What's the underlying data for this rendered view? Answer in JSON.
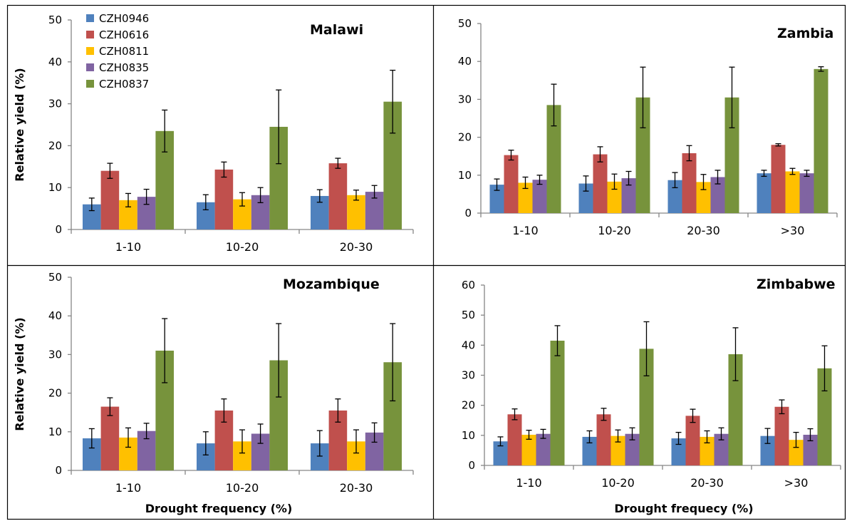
{
  "colors": {
    "CZH0946": "#4F81BD",
    "CZH0616": "#C0504D",
    "CZH0811": "#FFC000",
    "CZH0835": "#8064A2",
    "CZH0837": "#77933C"
  },
  "legend": {
    "position": "top-left",
    "entries": [
      "CZH0946",
      "CZH0616",
      "CZH0811",
      "CZH0835",
      "CZH0837"
    ]
  },
  "chart_data": [
    {
      "type": "bar",
      "title": "Malawi",
      "ylabel": "Relative yield  (%)",
      "xlabel": "",
      "categories": [
        "1-10",
        "10-20",
        "20-30"
      ],
      "ylim": [
        0,
        50
      ],
      "yticks": [
        "0",
        "10",
        "20",
        "30",
        "40",
        "50"
      ],
      "series": [
        {
          "name": "CZH0946",
          "values": [
            6,
            6.5,
            8
          ],
          "errors": [
            1.5,
            1.8,
            1.5
          ]
        },
        {
          "name": "CZH0616",
          "values": [
            14,
            14.3,
            15.8
          ],
          "errors": [
            1.8,
            1.8,
            1.2
          ]
        },
        {
          "name": "CZH0811",
          "values": [
            7,
            7.2,
            8.2
          ],
          "errors": [
            1.6,
            1.6,
            1.2
          ]
        },
        {
          "name": "CZH0835",
          "values": [
            7.8,
            8.2,
            9
          ],
          "errors": [
            1.8,
            1.8,
            1.5
          ]
        },
        {
          "name": "CZH0837",
          "values": [
            23.5,
            24.5,
            30.5
          ],
          "errors": [
            5,
            8.8,
            7.5
          ]
        }
      ]
    },
    {
      "type": "bar",
      "title": "Zambia",
      "ylabel": "",
      "xlabel": "",
      "categories": [
        "1-10",
        "10-20",
        "20-30",
        ">30"
      ],
      "ylim": [
        0,
        50
      ],
      "yticks": [
        "0",
        "10",
        "20",
        "30",
        "40",
        "50"
      ],
      "series": [
        {
          "name": "CZH0946",
          "values": [
            7.5,
            7.8,
            8.7,
            10.5
          ],
          "errors": [
            1.5,
            2,
            2,
            0.8
          ]
        },
        {
          "name": "CZH0616",
          "values": [
            15.3,
            15.5,
            15.8,
            18
          ],
          "errors": [
            1.3,
            2,
            2,
            0.3
          ]
        },
        {
          "name": "CZH0811",
          "values": [
            8,
            8.3,
            8.2,
            11
          ],
          "errors": [
            1.5,
            2,
            2,
            0.8
          ]
        },
        {
          "name": "CZH0835",
          "values": [
            8.8,
            9.2,
            9.5,
            10.5
          ],
          "errors": [
            1.2,
            1.8,
            1.8,
            0.8
          ]
        },
        {
          "name": "CZH0837",
          "values": [
            28.5,
            30.5,
            30.5,
            38
          ],
          "errors": [
            5.5,
            8,
            8,
            0.6
          ]
        }
      ]
    },
    {
      "type": "bar",
      "title": "Mozambique",
      "ylabel": "Relative yield  (%)",
      "xlabel": "Drought frequency (%)",
      "categories": [
        "1-10",
        "10-20",
        "20-30"
      ],
      "ylim": [
        0,
        50
      ],
      "yticks": [
        "0",
        "10",
        "20",
        "30",
        "40",
        "50"
      ],
      "series": [
        {
          "name": "CZH0946",
          "values": [
            8.3,
            7,
            7
          ],
          "errors": [
            2.5,
            3,
            3.3
          ]
        },
        {
          "name": "CZH0616",
          "values": [
            16.5,
            15.5,
            15.5
          ],
          "errors": [
            2.3,
            3,
            3
          ]
        },
        {
          "name": "CZH0811",
          "values": [
            8.5,
            7.5,
            7.5
          ],
          "errors": [
            2.5,
            3,
            3
          ]
        },
        {
          "name": "CZH0835",
          "values": [
            10.2,
            9.5,
            9.8
          ],
          "errors": [
            2,
            2.5,
            2.5
          ]
        },
        {
          "name": "CZH0837",
          "values": [
            31,
            28.5,
            28
          ],
          "errors": [
            8.3,
            9.5,
            10
          ]
        }
      ]
    },
    {
      "type": "bar",
      "title": "Zimbabwe",
      "ylabel": "",
      "xlabel": "Drought frequecy (%)",
      "categories": [
        "1-10",
        "10-20",
        "20-30",
        ">30"
      ],
      "ylim": [
        0,
        60
      ],
      "yticks": [
        "0",
        "10",
        "20",
        "30",
        "40",
        "50",
        "60"
      ],
      "series": [
        {
          "name": "CZH0946",
          "values": [
            8,
            9.5,
            9,
            9.8
          ],
          "errors": [
            1.5,
            2,
            2,
            2.5
          ]
        },
        {
          "name": "CZH0616",
          "values": [
            17,
            17,
            16.5,
            19.5
          ],
          "errors": [
            1.8,
            2,
            2.2,
            2.3
          ]
        },
        {
          "name": "CZH0811",
          "values": [
            10.2,
            9.8,
            9.5,
            8.5
          ],
          "errors": [
            1.5,
            2,
            2,
            2.5
          ]
        },
        {
          "name": "CZH0835",
          "values": [
            10.5,
            10.5,
            10.5,
            10.2
          ],
          "errors": [
            1.5,
            2,
            2,
            2
          ]
        },
        {
          "name": "CZH0837",
          "values": [
            41.5,
            38.8,
            37,
            32.3
          ],
          "errors": [
            5,
            9,
            8.8,
            7.5
          ]
        }
      ]
    }
  ]
}
